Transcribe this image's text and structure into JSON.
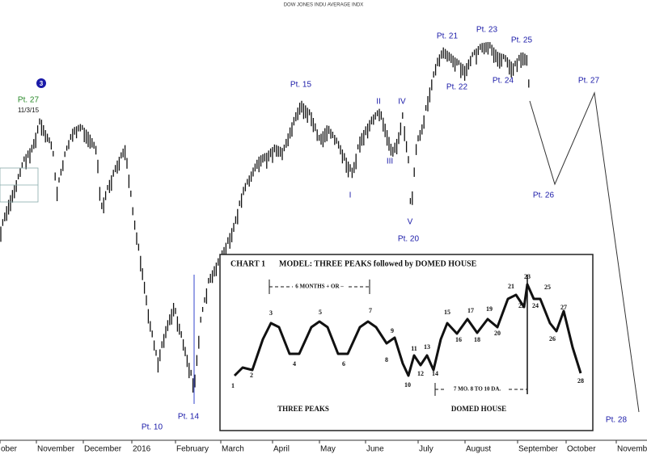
{
  "header": {
    "title": "DOW JONES INDU AVERAGE INDX"
  },
  "annotations": {
    "wave_marker": "3",
    "pt27_left": "Pt. 27",
    "date_left": "11/3/15",
    "pt15": "Pt. 15",
    "ii": "II",
    "iv": "IV",
    "iii": "III",
    "i": "I",
    "v": "V",
    "pt20": "Pt. 20",
    "pt21": "Pt. 21",
    "pt23": "Pt. 23",
    "pt25": "Pt. 25",
    "pt22": "Pt. 22",
    "pt24": "Pt. 24",
    "pt27_right": "Pt. 27",
    "pt26": "Pt. 26",
    "pt10": "Pt. 10",
    "pt14": "Pt. 14",
    "pt28": "Pt. 28"
  },
  "x_axis": {
    "labels": [
      "ober",
      "November",
      "December",
      "2016",
      "February",
      "March",
      "April",
      "May",
      "June",
      "July",
      "August",
      "September",
      "October",
      "November"
    ]
  },
  "inset": {
    "heading": "CHART 1",
    "model": "MODEL: THREE PEAKS followed by DOMED HOUSE",
    "span1": "6 MONTHS + OR –",
    "span2": "7 MO. 8 TO 10 DA.",
    "left_label": "THREE PEAKS",
    "right_label": "DOMED HOUSE",
    "points": [
      "1",
      "2",
      "3",
      "4",
      "5",
      "6",
      "7",
      "8",
      "9",
      "10",
      "11",
      "12",
      "13",
      "14",
      "15",
      "16",
      "17",
      "18",
      "19",
      "20",
      "21",
      "22",
      "23",
      "24",
      "25",
      "26",
      "27",
      "28"
    ]
  }
}
